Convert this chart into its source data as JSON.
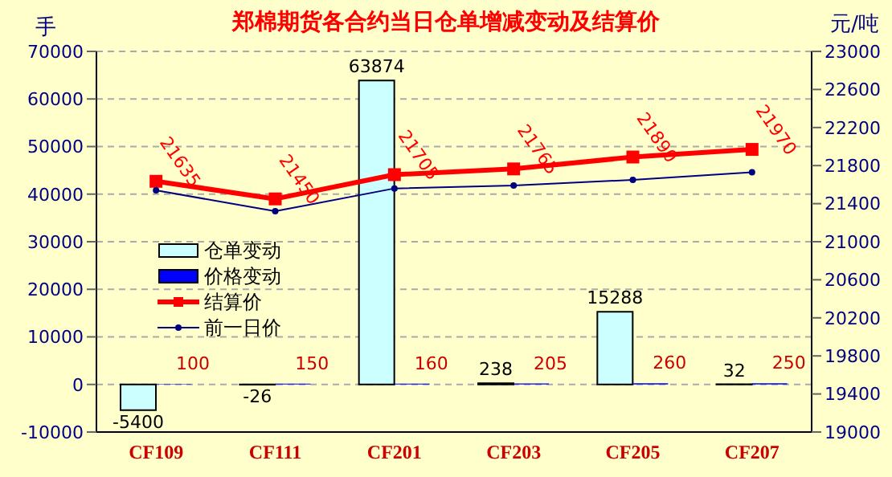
{
  "chart_data": {
    "type": "bar",
    "title": "郑棉期货各合约当日仓单增减变动及结算价",
    "ylabel": "手",
    "y2label": "元/吨",
    "categories": [
      "CF109",
      "CF111",
      "CF201",
      "CF203",
      "CF205",
      "CF207"
    ],
    "series": [
      {
        "name": "仓单变动",
        "color": "#ccffff",
        "values": [
          -5400,
          -26,
          63874,
          238,
          15288,
          32
        ],
        "value_labels": [
          "-5400",
          "-26",
          "63874",
          "238",
          "15288",
          "32"
        ]
      },
      {
        "name": "价格变动",
        "color": "#0000ff",
        "values": [
          100,
          150,
          160,
          205,
          260,
          250
        ],
        "value_labels": [
          "100",
          "150",
          "160",
          "205",
          "260",
          "250"
        ]
      },
      {
        "name": "结算价",
        "type": "line",
        "axis": "y2",
        "color": "#ff0000",
        "marker": "square",
        "values": [
          21635,
          21450,
          21705,
          21765,
          21890,
          21970
        ],
        "value_labels": [
          "21635",
          "21450",
          "21705",
          "21765",
          "21890",
          "21970"
        ]
      },
      {
        "name": "前一日价",
        "type": "line",
        "axis": "y2",
        "color": "#000080",
        "marker": "circle",
        "values": [
          21540,
          21320,
          21560,
          21590,
          21650,
          21730
        ]
      }
    ],
    "ylim": [
      -10000,
      70000
    ],
    "yticks": [
      -10000,
      0,
      10000,
      20000,
      30000,
      40000,
      50000,
      60000,
      70000
    ],
    "y2lim": [
      19000,
      23000
    ],
    "y2ticks": [
      19000,
      19400,
      19800,
      20200,
      20600,
      21000,
      21400,
      21800,
      22200,
      22600,
      23000
    ],
    "grid": "y",
    "legend": "left"
  }
}
